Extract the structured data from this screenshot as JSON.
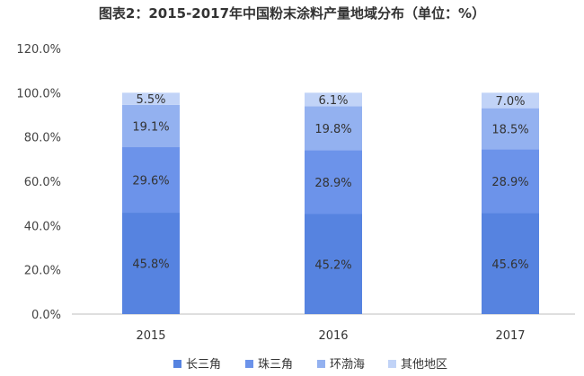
{
  "chart_data": {
    "type": "bar",
    "stacked": true,
    "title": "图表2：2015-2017年中国粉末涂料产量地域分布（单位：%）",
    "categories": [
      "2015",
      "2016",
      "2017"
    ],
    "series": [
      {
        "name": "长三角",
        "values": [
          45.8,
          45.2,
          45.6
        ],
        "color": "#5683E0"
      },
      {
        "name": "珠三角",
        "values": [
          29.6,
          28.9,
          28.9
        ],
        "color": "#6C93EA"
      },
      {
        "name": "环渤海",
        "values": [
          19.1,
          19.8,
          18.5
        ],
        "color": "#93B1F0"
      },
      {
        "name": "其他地区",
        "values": [
          5.5,
          6.1,
          7.0
        ],
        "color": "#C1D3F7"
      }
    ],
    "data_labels": [
      [
        "45.8%",
        "45.2%",
        "45.6%"
      ],
      [
        "29.6%",
        "28.9%",
        "28.9%"
      ],
      [
        "19.1%",
        "19.8%",
        "18.5%"
      ],
      [
        "5.5%",
        "6.1%",
        "7.0%"
      ]
    ],
    "ylim": [
      0,
      120
    ],
    "yticks": [
      "0.0%",
      "20.0%",
      "40.0%",
      "60.0%",
      "80.0%",
      "100.0%",
      "120.0%"
    ],
    "legend_position": "bottom",
    "grid": false
  }
}
